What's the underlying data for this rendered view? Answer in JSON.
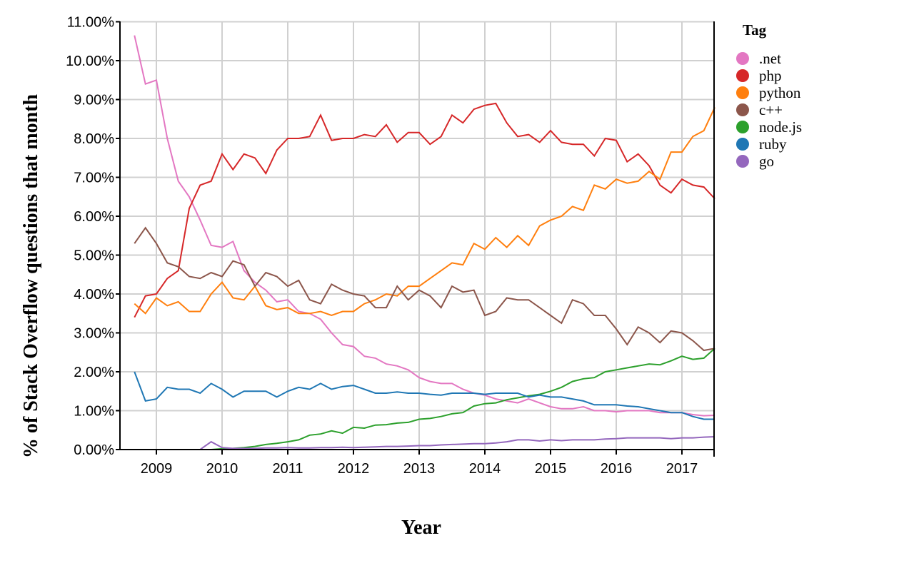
{
  "chart_data": {
    "type": "line",
    "xlabel": "Year",
    "ylabel": "% of Stack Overflow questions that month",
    "ylim": [
      0,
      11
    ],
    "yticks": [
      "0.00%",
      "1.00%",
      "2.00%",
      "3.00%",
      "4.00%",
      "5.00%",
      "6.00%",
      "7.00%",
      "8.00%",
      "9.00%",
      "10.00%",
      "11.00%"
    ],
    "xticks": [
      "2009",
      "2010",
      "2011",
      "2012",
      "2013",
      "2014",
      "2015",
      "2016",
      "2017"
    ],
    "grid": true,
    "legend": {
      "title": "Tag",
      "placement": "right"
    },
    "x": [
      "2008-09",
      "2008-11",
      "2009-01",
      "2009-03",
      "2009-05",
      "2009-07",
      "2009-09",
      "2009-11",
      "2010-01",
      "2010-03",
      "2010-05",
      "2010-07",
      "2010-09",
      "2010-11",
      "2011-01",
      "2011-03",
      "2011-05",
      "2011-07",
      "2011-09",
      "2011-11",
      "2012-01",
      "2012-03",
      "2012-05",
      "2012-07",
      "2012-09",
      "2012-11",
      "2013-01",
      "2013-03",
      "2013-05",
      "2013-07",
      "2013-09",
      "2013-11",
      "2014-01",
      "2014-03",
      "2014-05",
      "2014-07",
      "2014-09",
      "2014-11",
      "2015-01",
      "2015-03",
      "2015-05",
      "2015-07",
      "2015-09",
      "2015-11",
      "2016-01",
      "2016-03",
      "2016-05",
      "2016-07",
      "2016-09",
      "2016-11",
      "2017-01",
      "2017-03",
      "2017-05",
      "2017-07"
    ],
    "series": [
      {
        "name": ".net",
        "color": "#e377c2",
        "values": [
          10.65,
          9.4,
          9.5,
          8.0,
          6.9,
          6.5,
          5.9,
          5.25,
          5.2,
          5.35,
          4.6,
          4.3,
          4.1,
          3.8,
          3.85,
          3.55,
          3.5,
          3.35,
          3.0,
          2.7,
          2.65,
          2.4,
          2.35,
          2.2,
          2.15,
          2.05,
          1.85,
          1.75,
          1.7,
          1.7,
          1.55,
          1.45,
          1.4,
          1.3,
          1.25,
          1.2,
          1.3,
          1.2,
          1.1,
          1.05,
          1.05,
          1.1,
          1.0,
          1.0,
          0.97,
          1.0,
          1.0,
          1.0,
          0.95,
          0.95,
          0.95,
          0.9,
          0.87,
          0.88
        ]
      },
      {
        "name": "php",
        "color": "#d62728",
        "values": [
          3.4,
          3.95,
          4.0,
          4.4,
          4.6,
          6.2,
          6.8,
          6.9,
          7.6,
          7.2,
          7.6,
          7.5,
          7.1,
          7.7,
          8.0,
          8.0,
          8.05,
          8.6,
          7.95,
          8.0,
          8.0,
          8.1,
          8.05,
          8.35,
          7.9,
          8.15,
          8.15,
          7.85,
          8.05,
          8.6,
          8.4,
          8.75,
          8.85,
          8.9,
          8.4,
          8.05,
          8.1,
          7.9,
          8.2,
          7.9,
          7.85,
          7.85,
          7.55,
          8.0,
          7.95,
          7.4,
          7.6,
          7.3,
          6.8,
          6.6,
          6.95,
          6.8,
          6.75,
          6.45
        ]
      },
      {
        "name": "python",
        "color": "#ff7f0e",
        "values": [
          3.75,
          3.5,
          3.9,
          3.7,
          3.8,
          3.55,
          3.55,
          4.0,
          4.3,
          3.9,
          3.85,
          4.2,
          3.7,
          3.6,
          3.65,
          3.5,
          3.5,
          3.55,
          3.45,
          3.55,
          3.55,
          3.75,
          3.85,
          4.0,
          3.95,
          4.2,
          4.2,
          4.4,
          4.6,
          4.8,
          4.75,
          5.3,
          5.15,
          5.45,
          5.2,
          5.5,
          5.25,
          5.75,
          5.9,
          6.0,
          6.25,
          6.15,
          6.8,
          6.7,
          6.95,
          6.85,
          6.9,
          7.15,
          6.95,
          7.65,
          7.65,
          8.05,
          8.2,
          8.8
        ]
      },
      {
        "name": "c++",
        "color": "#8c564b",
        "values": [
          5.3,
          5.7,
          5.3,
          4.8,
          4.7,
          4.45,
          4.4,
          4.55,
          4.45,
          4.85,
          4.75,
          4.2,
          4.55,
          4.45,
          4.2,
          4.35,
          3.85,
          3.75,
          4.25,
          4.1,
          4.0,
          3.95,
          3.65,
          3.65,
          4.2,
          3.85,
          4.1,
          3.95,
          3.65,
          4.2,
          4.05,
          4.1,
          3.45,
          3.55,
          3.9,
          3.85,
          3.85,
          3.65,
          3.45,
          3.25,
          3.85,
          3.75,
          3.45,
          3.45,
          3.1,
          2.7,
          3.15,
          3.0,
          2.75,
          3.05,
          3.0,
          2.8,
          2.55,
          2.6
        ]
      },
      {
        "name": "node.js",
        "color": "#2ca02c",
        "values": [
          0,
          0,
          0,
          0,
          0,
          0,
          0,
          0,
          0.02,
          0.03,
          0.05,
          0.08,
          0.13,
          0.16,
          0.2,
          0.25,
          0.37,
          0.4,
          0.48,
          0.42,
          0.57,
          0.55,
          0.63,
          0.64,
          0.68,
          0.7,
          0.78,
          0.8,
          0.85,
          0.92,
          0.95,
          1.12,
          1.18,
          1.2,
          1.28,
          1.33,
          1.38,
          1.42,
          1.5,
          1.6,
          1.75,
          1.82,
          1.85,
          2.0,
          2.05,
          2.1,
          2.15,
          2.2,
          2.18,
          2.28,
          2.4,
          2.32,
          2.35,
          2.6
        ]
      },
      {
        "name": "ruby",
        "color": "#1f77b4",
        "values": [
          2.0,
          1.25,
          1.3,
          1.6,
          1.55,
          1.55,
          1.45,
          1.7,
          1.55,
          1.35,
          1.5,
          1.5,
          1.5,
          1.35,
          1.5,
          1.6,
          1.55,
          1.7,
          1.55,
          1.62,
          1.65,
          1.55,
          1.45,
          1.45,
          1.48,
          1.45,
          1.45,
          1.42,
          1.4,
          1.45,
          1.45,
          1.45,
          1.42,
          1.45,
          1.45,
          1.45,
          1.35,
          1.4,
          1.35,
          1.35,
          1.3,
          1.25,
          1.15,
          1.15,
          1.15,
          1.12,
          1.1,
          1.05,
          1.0,
          0.95,
          0.95,
          0.85,
          0.78,
          0.78
        ]
      },
      {
        "name": "go",
        "color": "#9467bd",
        "values": [
          0,
          0,
          0,
          0,
          0,
          0,
          0,
          0.2,
          0.05,
          0.03,
          0.03,
          0.03,
          0.04,
          0.04,
          0.05,
          0.04,
          0.04,
          0.05,
          0.05,
          0.06,
          0.05,
          0.06,
          0.07,
          0.08,
          0.08,
          0.09,
          0.1,
          0.1,
          0.12,
          0.13,
          0.14,
          0.15,
          0.15,
          0.17,
          0.2,
          0.25,
          0.25,
          0.22,
          0.25,
          0.23,
          0.25,
          0.25,
          0.25,
          0.27,
          0.28,
          0.3,
          0.3,
          0.3,
          0.3,
          0.28,
          0.3,
          0.3,
          0.32,
          0.33
        ]
      }
    ]
  }
}
